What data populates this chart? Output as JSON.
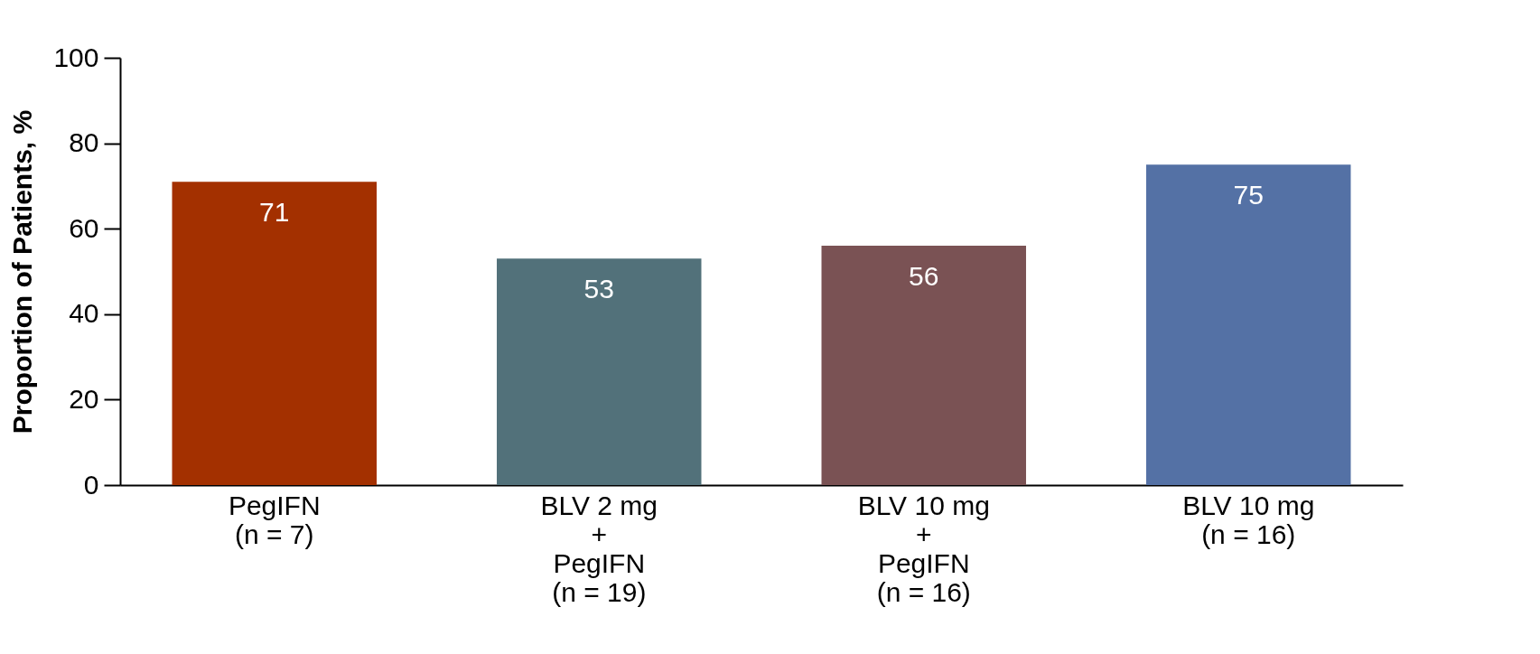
{
  "chart_data": {
    "type": "bar",
    "ylabel": "Proportion of Patients, %",
    "categories": [
      "PegIFN\n(n = 7)",
      "BLV 2 mg\n+\nPegIFN\n(n = 19)",
      "BLV 10 mg\n+\nPegIFN\n(n = 16)",
      "BLV 10 mg\n(n = 16)"
    ],
    "values": [
      71,
      53,
      56,
      75
    ],
    "colors": [
      "#a33000",
      "#52717a",
      "#7a5254",
      "#5471a5"
    ],
    "ylim": [
      0,
      100
    ],
    "yticks": [
      0,
      20,
      40,
      60,
      80,
      100
    ],
    "data_labels": true
  }
}
